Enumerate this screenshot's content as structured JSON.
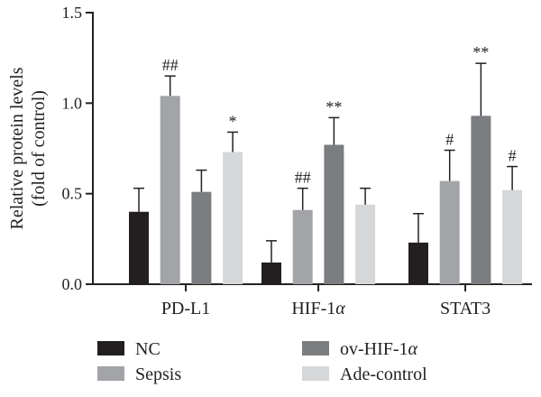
{
  "chart_data": {
    "type": "bar",
    "title": "",
    "xlabel": "",
    "ylabel_lines": [
      "Relative protein levels",
      "(fold of control)"
    ],
    "ylim": [
      0,
      1.5
    ],
    "yticks": [
      "0.0",
      "0.5",
      "1.0",
      "1.5"
    ],
    "ytick_values": [
      0,
      0.5,
      1.0,
      1.5
    ],
    "grid": false,
    "categories": [
      {
        "label": "PD-L1",
        "italic_suffix": ""
      },
      {
        "label": "HIF-1",
        "italic_suffix": "α"
      },
      {
        "label": "STAT3",
        "italic_suffix": ""
      }
    ],
    "series": [
      {
        "name": "NC",
        "name_italic_suffix": "",
        "color": "#231f20",
        "values": [
          0.4,
          0.12,
          0.23
        ],
        "errors": [
          0.13,
          0.12,
          0.16
        ],
        "annotations": [
          "",
          "",
          ""
        ]
      },
      {
        "name": "Sepsis",
        "name_italic_suffix": "",
        "color": "#a2a4a7",
        "values": [
          1.04,
          0.41,
          0.57
        ],
        "errors": [
          0.11,
          0.12,
          0.17
        ],
        "annotations": [
          "##",
          "##",
          "#"
        ]
      },
      {
        "name": "ov-HIF-1",
        "name_italic_suffix": "α",
        "color": "#7b7d80",
        "values": [
          0.51,
          0.77,
          0.93
        ],
        "errors": [
          0.12,
          0.15,
          0.29
        ],
        "annotations": [
          "",
          "**",
          "**"
        ]
      },
      {
        "name": "Ade-control",
        "name_italic_suffix": "",
        "color": "#d6d7d8",
        "values": [
          0.73,
          0.44,
          0.52
        ],
        "errors": [
          0.11,
          0.09,
          0.13
        ],
        "annotations": [
          "*",
          "",
          "#"
        ]
      }
    ],
    "legend_placement": "bottom, two columns"
  }
}
